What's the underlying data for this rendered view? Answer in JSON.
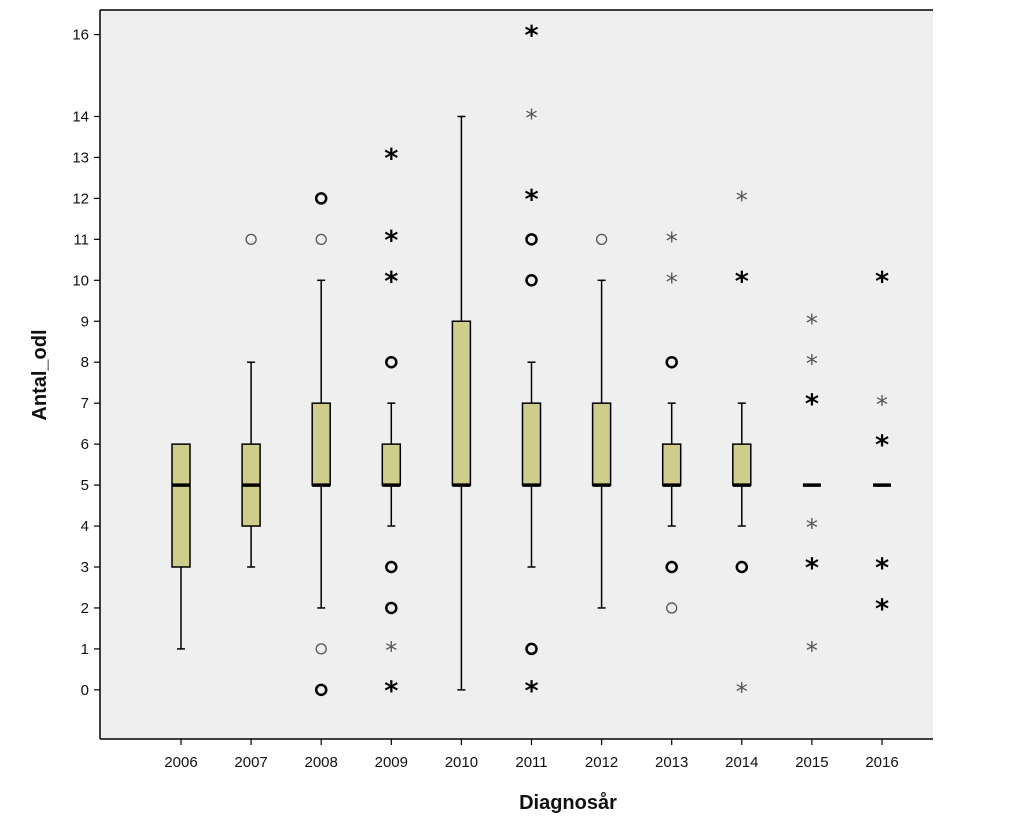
{
  "chart_data": {
    "type": "boxplot",
    "xlabel": "Diagnosår",
    "ylabel": "Antal_odl",
    "ylim": [
      -1.2,
      16.6
    ],
    "yticks": [
      0,
      1,
      2,
      3,
      4,
      5,
      6,
      7,
      8,
      9,
      10,
      11,
      12,
      13,
      14,
      16
    ],
    "grid": false,
    "colors": {
      "plot_bg": "#efefef",
      "box_fill": "#cfcd8b",
      "stroke": "#000000",
      "faint_marker": "#555555"
    },
    "categories": [
      "2006",
      "2007",
      "2008",
      "2009",
      "2010",
      "2011",
      "2012",
      "2013",
      "2014",
      "2015",
      "2016"
    ],
    "boxes": [
      {
        "category": "2006",
        "whisker_low": 1,
        "q1": 3,
        "median": 5,
        "q3": 6,
        "whisker_high": 6
      },
      {
        "category": "2007",
        "whisker_low": 3,
        "q1": 4,
        "median": 5,
        "q3": 6,
        "whisker_high": 8
      },
      {
        "category": "2008",
        "whisker_low": 2,
        "q1": 5,
        "median": 5,
        "q3": 7,
        "whisker_high": 10
      },
      {
        "category": "2009",
        "whisker_low": 4,
        "q1": 5,
        "median": 5,
        "q3": 6,
        "whisker_high": 7
      },
      {
        "category": "2010",
        "whisker_low": 0,
        "q1": 5,
        "median": 5,
        "q3": 9,
        "whisker_high": 14
      },
      {
        "category": "2011",
        "whisker_low": 3,
        "q1": 5,
        "median": 5,
        "q3": 7,
        "whisker_high": 8
      },
      {
        "category": "2012",
        "whisker_low": 2,
        "q1": 5,
        "median": 5,
        "q3": 7,
        "whisker_high": 10
      },
      {
        "category": "2013",
        "whisker_low": 4,
        "q1": 5,
        "median": 5,
        "q3": 6,
        "whisker_high": 7
      },
      {
        "category": "2014",
        "whisker_low": 4,
        "q1": 5,
        "median": 5,
        "q3": 6,
        "whisker_high": 7
      },
      {
        "category": "2015",
        "whisker_low": 5,
        "q1": 5,
        "median": 5,
        "q3": 5,
        "whisker_high": 5
      },
      {
        "category": "2016",
        "whisker_low": 5,
        "q1": 5,
        "median": 5,
        "q3": 5,
        "whisker_high": 5
      }
    ],
    "outliers": [
      {
        "category": "2007",
        "value": 11,
        "marker": "circle",
        "bold": false
      },
      {
        "category": "2008",
        "value": 12,
        "marker": "circle",
        "bold": true
      },
      {
        "category": "2008",
        "value": 11,
        "marker": "circle",
        "bold": false
      },
      {
        "category": "2008",
        "value": 1,
        "marker": "circle",
        "bold": false
      },
      {
        "category": "2008",
        "value": 0,
        "marker": "circle",
        "bold": true
      },
      {
        "category": "2009",
        "value": 13,
        "marker": "star",
        "bold": true
      },
      {
        "category": "2009",
        "value": 11,
        "marker": "star",
        "bold": true
      },
      {
        "category": "2009",
        "value": 10,
        "marker": "star",
        "bold": true
      },
      {
        "category": "2009",
        "value": 8,
        "marker": "circle",
        "bold": true
      },
      {
        "category": "2009",
        "value": 3,
        "marker": "circle",
        "bold": true
      },
      {
        "category": "2009",
        "value": 2,
        "marker": "circle",
        "bold": true
      },
      {
        "category": "2009",
        "value": 1,
        "marker": "star",
        "bold": false
      },
      {
        "category": "2009",
        "value": 0,
        "marker": "star",
        "bold": true
      },
      {
        "category": "2011",
        "value": 16,
        "marker": "star",
        "bold": true
      },
      {
        "category": "2011",
        "value": 14,
        "marker": "star",
        "bold": false
      },
      {
        "category": "2011",
        "value": 12,
        "marker": "star",
        "bold": true
      },
      {
        "category": "2011",
        "value": 11,
        "marker": "circle",
        "bold": true
      },
      {
        "category": "2011",
        "value": 10,
        "marker": "circle",
        "bold": true
      },
      {
        "category": "2011",
        "value": 1,
        "marker": "circle",
        "bold": true
      },
      {
        "category": "2011",
        "value": 0,
        "marker": "star",
        "bold": true
      },
      {
        "category": "2012",
        "value": 11,
        "marker": "circle",
        "bold": false
      },
      {
        "category": "2013",
        "value": 11,
        "marker": "star",
        "bold": false
      },
      {
        "category": "2013",
        "value": 10,
        "marker": "star",
        "bold": false
      },
      {
        "category": "2013",
        "value": 8,
        "marker": "circle",
        "bold": true
      },
      {
        "category": "2013",
        "value": 3,
        "marker": "circle",
        "bold": true
      },
      {
        "category": "2013",
        "value": 2,
        "marker": "circle",
        "bold": false
      },
      {
        "category": "2014",
        "value": 12,
        "marker": "star",
        "bold": false
      },
      {
        "category": "2014",
        "value": 10,
        "marker": "star",
        "bold": true
      },
      {
        "category": "2014",
        "value": 3,
        "marker": "circle",
        "bold": true
      },
      {
        "category": "2014",
        "value": 0,
        "marker": "star",
        "bold": false
      },
      {
        "category": "2015",
        "value": 9,
        "marker": "star",
        "bold": false
      },
      {
        "category": "2015",
        "value": 8,
        "marker": "star",
        "bold": false
      },
      {
        "category": "2015",
        "value": 7,
        "marker": "star",
        "bold": true
      },
      {
        "category": "2015",
        "value": 4,
        "marker": "star",
        "bold": false
      },
      {
        "category": "2015",
        "value": 3,
        "marker": "star",
        "bold": true
      },
      {
        "category": "2015",
        "value": 1,
        "marker": "star",
        "bold": false
      },
      {
        "category": "2016",
        "value": 10,
        "marker": "star",
        "bold": true
      },
      {
        "category": "2016",
        "value": 7,
        "marker": "star",
        "bold": false
      },
      {
        "category": "2016",
        "value": 6,
        "marker": "star",
        "bold": true
      },
      {
        "category": "2016",
        "value": 3,
        "marker": "star",
        "bold": true
      },
      {
        "category": "2016",
        "value": 2,
        "marker": "star",
        "bold": true
      }
    ]
  }
}
